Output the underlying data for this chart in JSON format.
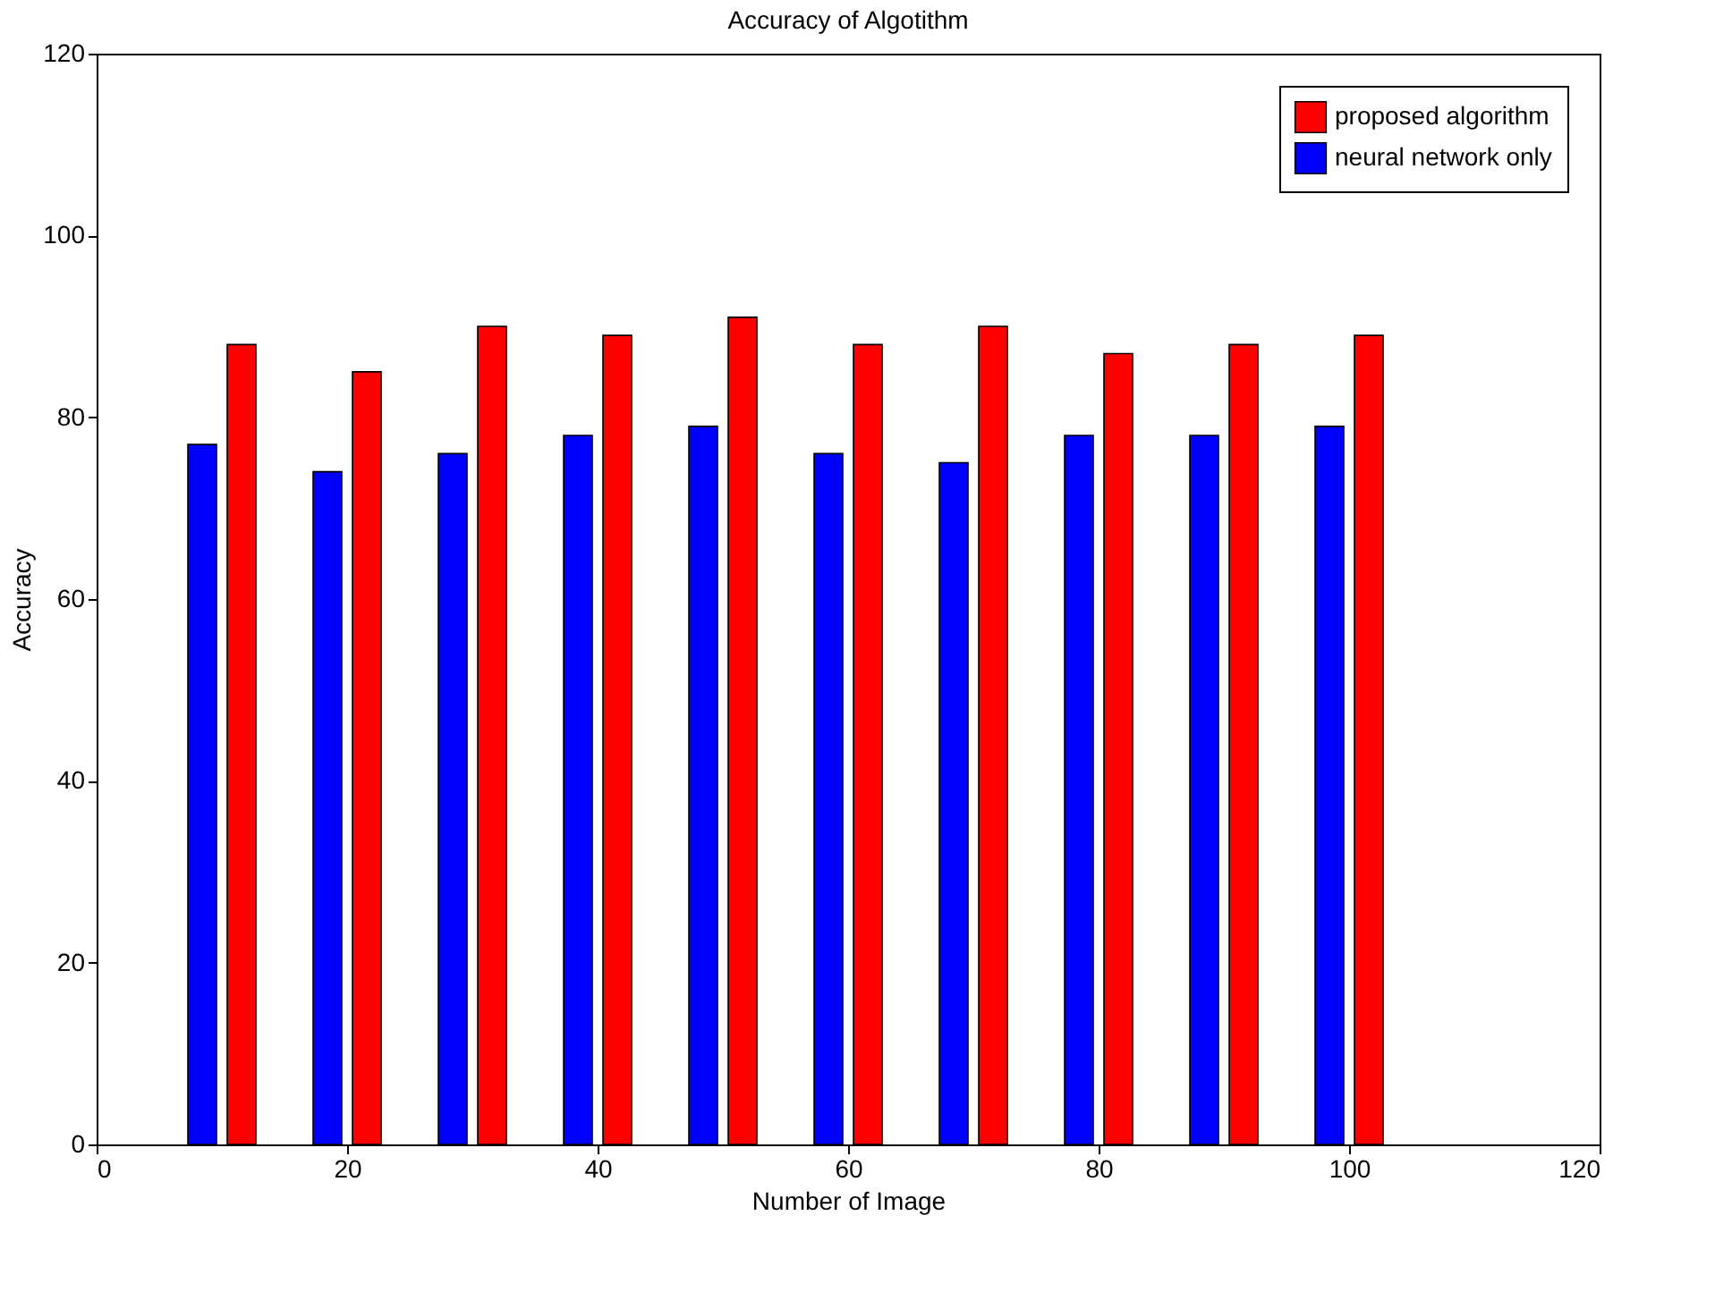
{
  "chart_data": {
    "type": "bar",
    "title": "Accuracy of Algotithm",
    "xlabel": "Number of Image",
    "ylabel": "Accuracy",
    "x": [
      10,
      20,
      30,
      40,
      50,
      60,
      70,
      80,
      90,
      100
    ],
    "series": [
      {
        "name": "neural network only",
        "color": "#0000ff",
        "values": [
          77,
          74,
          76,
          78,
          79,
          76,
          75,
          78,
          78,
          79
        ]
      },
      {
        "name": "proposed algorithm",
        "color": "#ff0000",
        "values": [
          88,
          85,
          90,
          89,
          91,
          88,
          90,
          87,
          88,
          89
        ]
      }
    ],
    "xlim": [
      0,
      120
    ],
    "xticks": [
      0,
      20,
      40,
      60,
      80,
      100,
      120
    ],
    "ylim": [
      0,
      120
    ],
    "yticks": [
      0,
      20,
      40,
      60,
      80,
      100,
      120
    ],
    "legend": "top right"
  }
}
